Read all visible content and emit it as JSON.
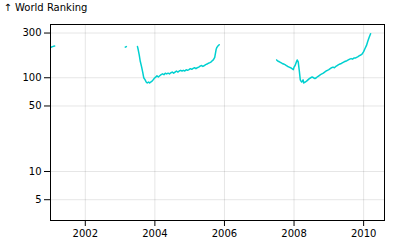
{
  "chart_data": {
    "type": "line",
    "ylabel": "World Ranking",
    "color": "#00d0d0",
    "log": "y",
    "grid": true,
    "xlim": [
      2001.0,
      2010.6
    ],
    "xticks": [
      2002,
      2004,
      2006,
      2008,
      2010
    ],
    "ylim": [
      3,
      370
    ],
    "yticks": [
      5,
      10,
      50,
      100,
      300
    ],
    "x": [
      2001.0,
      2001.03,
      2001.06,
      2001.09,
      2001.12,
      null,
      2003.15,
      2003.18,
      null,
      2003.5,
      2003.52,
      2003.55,
      2003.58,
      2003.62,
      2003.65,
      2003.68,
      2003.72,
      2003.75,
      2003.78,
      2003.82,
      2003.85,
      2003.88,
      2003.92,
      2003.95,
      2003.98,
      2004.0,
      2004.03,
      2004.06,
      2004.1,
      2004.14,
      2004.18,
      2004.22,
      2004.26,
      2004.3,
      2004.34,
      2004.38,
      2004.42,
      2004.46,
      2004.5,
      2004.54,
      2004.58,
      2004.62,
      2004.66,
      2004.7,
      2004.74,
      2004.78,
      2004.82,
      2004.86,
      2004.9,
      2004.94,
      2004.98,
      2005.02,
      2005.06,
      2005.1,
      2005.14,
      2005.18,
      2005.22,
      2005.26,
      2005.3,
      2005.34,
      2005.38,
      2005.42,
      2005.46,
      2005.5,
      2005.54,
      2005.58,
      2005.62,
      2005.65,
      2005.68,
      2005.72,
      2005.76,
      2005.78,
      2005.8,
      2005.82,
      2005.85,
      null,
      2007.5,
      2007.54,
      2007.58,
      2007.62,
      2007.66,
      2007.7,
      2007.74,
      2007.78,
      2007.82,
      2007.86,
      2007.9,
      2007.94,
      2007.98,
      2008.0,
      2008.03,
      2008.06,
      2008.09,
      2008.12,
      2008.15,
      2008.18,
      2008.2,
      2008.22,
      2008.24,
      2008.26,
      2008.28,
      2008.32,
      2008.36,
      2008.4,
      2008.44,
      2008.48,
      2008.52,
      2008.56,
      2008.6,
      2008.64,
      2008.68,
      2008.72,
      2008.76,
      2008.8,
      2008.84,
      2008.88,
      2008.92,
      2008.96,
      2009.0,
      2009.04,
      2009.08,
      2009.12,
      2009.16,
      2009.2,
      2009.24,
      2009.28,
      2009.32,
      2009.36,
      2009.4,
      2009.44,
      2009.48,
      2009.52,
      2009.56,
      2009.6,
      2009.64,
      2009.68,
      2009.72,
      2009.76,
      2009.8,
      2009.84,
      2009.88,
      2009.92,
      2009.96,
      2010.0,
      2010.04,
      2010.08,
      2010.12,
      2010.16,
      2010.2
    ],
    "values": [
      210,
      213,
      215,
      217,
      218,
      null,
      212,
      215,
      null,
      215,
      200,
      175,
      150,
      130,
      115,
      100,
      95,
      90,
      88,
      90,
      88,
      90,
      92,
      95,
      98,
      100,
      102,
      105,
      102,
      105,
      108,
      110,
      108,
      112,
      110,
      112,
      110,
      113,
      115,
      112,
      115,
      118,
      115,
      118,
      120,
      118,
      120,
      118,
      122,
      120,
      122,
      125,
      123,
      126,
      128,
      125,
      128,
      130,
      133,
      135,
      132,
      135,
      138,
      140,
      143,
      145,
      148,
      152,
      155,
      165,
      200,
      210,
      215,
      220,
      225,
      null,
      155,
      150,
      148,
      145,
      142,
      140,
      138,
      135,
      132,
      130,
      128,
      125,
      122,
      130,
      135,
      145,
      155,
      148,
      120,
      95,
      92,
      90,
      92,
      95,
      88,
      90,
      92,
      95,
      98,
      100,
      102,
      100,
      98,
      100,
      103,
      105,
      108,
      110,
      112,
      115,
      118,
      120,
      122,
      125,
      128,
      130,
      128,
      132,
      135,
      138,
      140,
      142,
      145,
      148,
      150,
      152,
      155,
      158,
      160,
      158,
      162,
      162,
      165,
      168,
      172,
      175,
      180,
      190,
      205,
      220,
      245,
      270,
      295
    ]
  }
}
